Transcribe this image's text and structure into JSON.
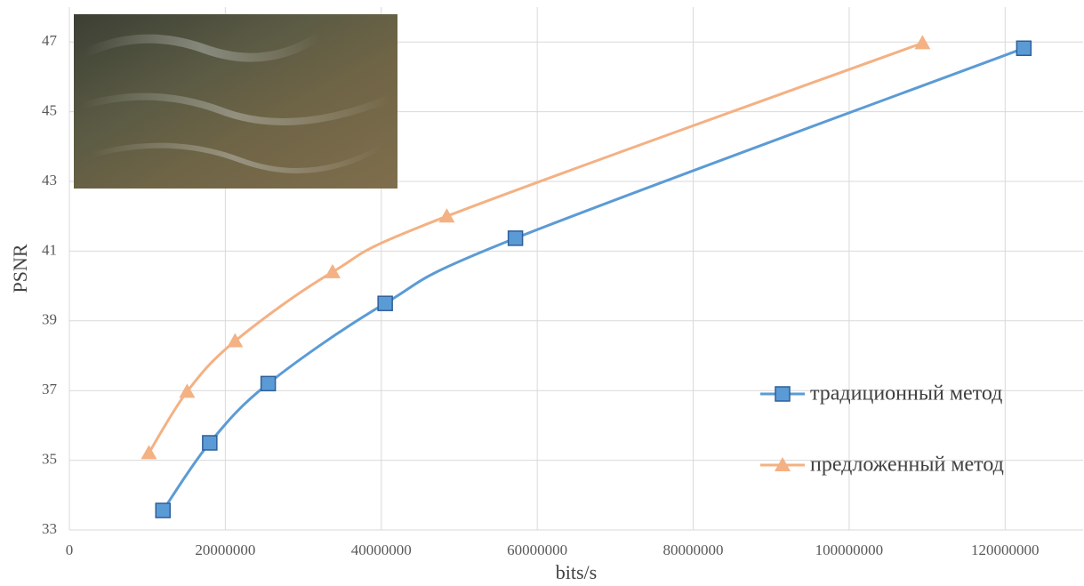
{
  "chart_data": {
    "type": "line",
    "x_label": "bits/s",
    "y_label": "PSNR",
    "xlim": [
      0,
      130000000
    ],
    "xticks": [
      0,
      20000000,
      40000000,
      60000000,
      80000000,
      100000000,
      120000000
    ],
    "ylim": [
      33,
      48
    ],
    "yticks": [
      33,
      35,
      37,
      39,
      41,
      43,
      45,
      47
    ],
    "grid": true,
    "smooth": true,
    "legend_position": "right",
    "series": [
      {
        "name": "традиционный метод",
        "color": "#5b9bd5",
        "marker": "square",
        "x": [
          12000000,
          18000000,
          25500000,
          40500000,
          57200000,
          122400000
        ],
        "values": [
          33.56,
          35.5,
          37.2,
          39.5,
          41.37,
          46.82
        ]
      },
      {
        "name": "предложенный метод",
        "color": "#f4b183",
        "marker": "triangle",
        "x": [
          10200000,
          15100000,
          21250000,
          33750000,
          48400000,
          109400000
        ],
        "values": [
          35.21,
          36.97,
          38.42,
          40.4,
          42.0,
          46.97
        ]
      }
    ]
  }
}
